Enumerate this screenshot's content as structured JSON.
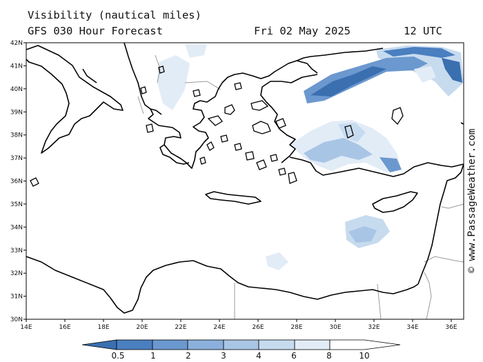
{
  "header": {
    "title": "Visibility (nautical miles)",
    "subtitle": "GFS 030 Hour Forecast",
    "date": "Fri 02 May 2025",
    "time": "12 UTC"
  },
  "map": {
    "lat_labels": [
      "42N",
      "41N",
      "40N",
      "39N",
      "38N",
      "37N",
      "36N",
      "35N",
      "34N",
      "33N",
      "32N",
      "31N",
      "30N"
    ],
    "lon_labels": [
      "14E",
      "16E",
      "18E",
      "20E",
      "22E",
      "24E",
      "26E",
      "28E",
      "30E",
      "32E",
      "34E",
      "36E"
    ]
  },
  "legend": {
    "labels": [
      "0.5",
      "1",
      "2",
      "3",
      "4",
      "6",
      "8",
      "10"
    ],
    "colors": [
      "#3a6fb0",
      "#4a7fc0",
      "#6b98cf",
      "#8bb0db",
      "#a9c5e5",
      "#c7dbef",
      "#e2ecf7",
      "#ffffff"
    ]
  },
  "credit": "© www.PassageWeather.com"
}
